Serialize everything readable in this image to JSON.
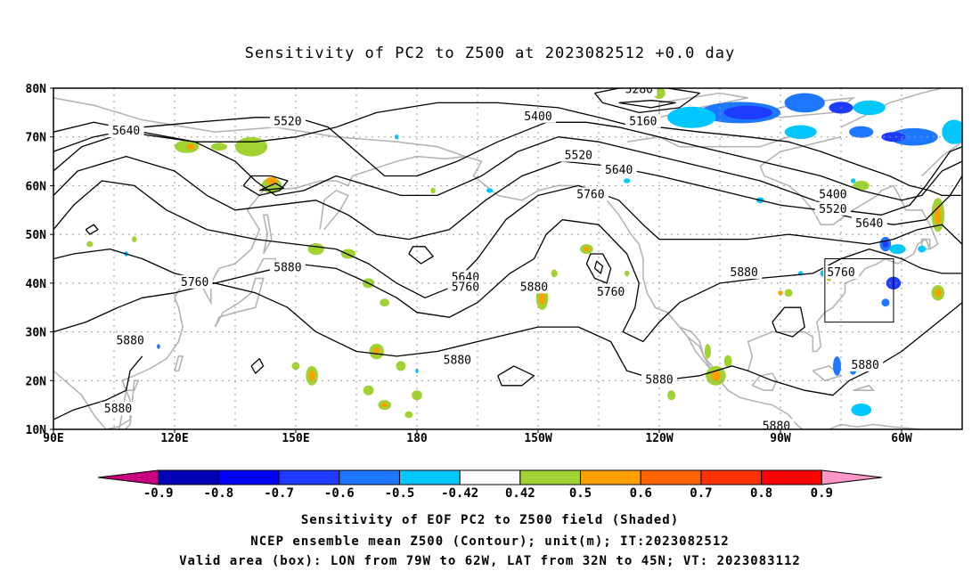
{
  "title": "Sensitivity of PC2 to Z500 at 2023082512 +0.0 day",
  "lat_labels": [
    "80N",
    "70N",
    "60N",
    "50N",
    "40N",
    "30N",
    "20N",
    "10N"
  ],
  "lon_labels": [
    "90E",
    "120E",
    "150E",
    "180",
    "150W",
    "120W",
    "90W",
    "60W"
  ],
  "contour_labels": [
    {
      "text": "5640",
      "lon": 108,
      "lat": 71
    },
    {
      "text": "5520",
      "lon": 148,
      "lat": 73
    },
    {
      "text": "5400",
      "lon": 210,
      "lat": 74
    },
    {
      "text": "5280",
      "lon": 235,
      "lat": 79.5
    },
    {
      "text": "5160",
      "lon": 236,
      "lat": 73
    },
    {
      "text": "5520",
      "lon": 220,
      "lat": 66
    },
    {
      "text": "5640",
      "lon": 230,
      "lat": 63
    },
    {
      "text": "5760",
      "lon": 223,
      "lat": 58
    },
    {
      "text": "5400",
      "lon": 283,
      "lat": 58
    },
    {
      "text": "5520",
      "lon": 283,
      "lat": 55
    },
    {
      "text": "5640",
      "lon": 292,
      "lat": 52
    },
    {
      "text": "5880",
      "lon": 148,
      "lat": 43
    },
    {
      "text": "5760",
      "lon": 125,
      "lat": 40
    },
    {
      "text": "5640",
      "lon": 192,
      "lat": 41
    },
    {
      "text": "5760",
      "lon": 192,
      "lat": 39
    },
    {
      "text": "5880",
      "lon": 209,
      "lat": 39
    },
    {
      "text": "5760",
      "lon": 228,
      "lat": 38
    },
    {
      "text": "5880",
      "lon": 261,
      "lat": 42
    },
    {
      "text": "5760",
      "lon": 285,
      "lat": 42
    },
    {
      "text": "5880",
      "lon": 109,
      "lat": 28
    },
    {
      "text": "5880",
      "lon": 190,
      "lat": 24
    },
    {
      "text": "5880",
      "lon": 240,
      "lat": 20
    },
    {
      "text": "5880",
      "lon": 291,
      "lat": 23
    },
    {
      "text": "5880",
      "lon": 106,
      "lat": 14
    },
    {
      "text": "5880",
      "lon": 269,
      "lat": 10.5
    }
  ],
  "valid_box": {
    "lon_min": 281,
    "lon_max": 298,
    "lat_min": 32,
    "lat_max": 45
  },
  "colorbar": {
    "labels": [
      "-0.9",
      "-0.8",
      "-0.7",
      "-0.6",
      "-0.5",
      "-0.42",
      "0.42",
      "0.5",
      "0.6",
      "0.7",
      "0.8",
      "0.9"
    ],
    "colors": [
      "#c8007f",
      "#0000b4",
      "#0000ff",
      "#1e3cff",
      "#1e78ff",
      "#00c8ff",
      "#ffffff",
      "#a0d232",
      "#ffa000",
      "#ff6400",
      "#ff3200",
      "#ff0000",
      "#ff96c8"
    ]
  },
  "captions": [
    "Sensitivity of EOF PC2 to Z500 field (Shaded)",
    "NCEP ensemble mean Z500 (Contour); unit(m); IT:2023082512",
    "Valid area (box): LON from 79W to 62W, LAT from 32N to 45N; VT: 2023083112"
  ]
}
